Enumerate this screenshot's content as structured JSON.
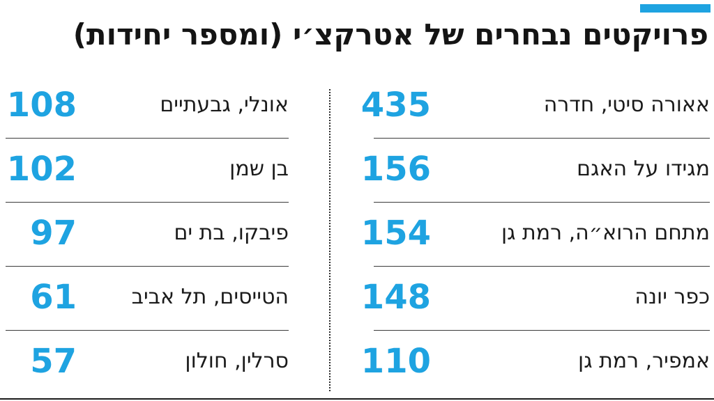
{
  "title": "פרויקטים נבחרים של אטרקצ׳י (ומספר יחידות)",
  "colors": {
    "accent": "#1ea3e1",
    "text": "#1a1a1a"
  },
  "chart_data": {
    "type": "table",
    "title": "פרויקטים נבחרים של אטרקצ׳י (ומספר יחידות)",
    "columns": [
      {
        "rows": [
          {
            "label": "אאורה סיטי, חדרה",
            "value": 435
          },
          {
            "label": "מגידו על האגם",
            "value": 156
          },
          {
            "label": "מתחם הרוא״ה, רמת גן",
            "value": 154
          },
          {
            "label": "כפר יונה",
            "value": 148
          },
          {
            "label": "אמפיר, רמת גן",
            "value": 110
          }
        ]
      },
      {
        "rows": [
          {
            "label": "אונלי, גבעתיים",
            "value": 108
          },
          {
            "label": "בן שמן",
            "value": 102
          },
          {
            "label": "פיבקו, בת ים",
            "value": 97
          },
          {
            "label": "הטייסים, תל אביב",
            "value": 61
          },
          {
            "label": "סרלין, חולון",
            "value": 57
          }
        ]
      }
    ]
  }
}
